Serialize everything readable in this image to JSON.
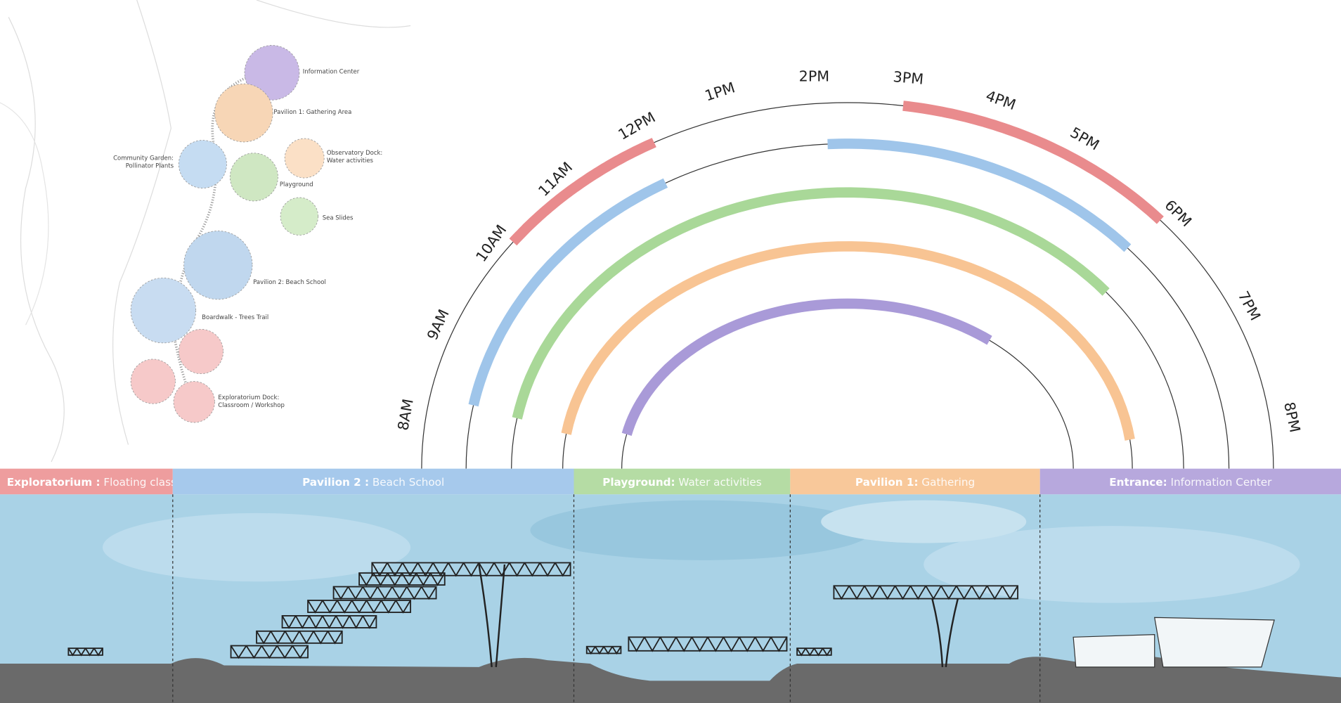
{
  "map": {
    "labels": [
      {
        "lines": [
          "Information Center"
        ]
      },
      {
        "lines": [
          "Pavilion 1: Gathering Area"
        ]
      },
      {
        "lines": [
          "Community Garden:",
          "Pollinator Plants"
        ]
      },
      {
        "lines": [
          "Observatory Dock:",
          "Water activities"
        ]
      },
      {
        "lines": [
          "Playground"
        ]
      },
      {
        "lines": [
          "Sea Slides"
        ]
      },
      {
        "lines": [
          "Pavilion 2: Beach School"
        ]
      },
      {
        "lines": [
          "Boardwalk - Trees Trail"
        ]
      },
      {
        "lines": [
          "Exploratorium Dock:",
          "Classroom / Workshop"
        ]
      }
    ]
  },
  "timeline": {
    "hours": [
      "8AM",
      "9AM",
      "10AM",
      "11AM",
      "12PM",
      "1PM",
      "2PM",
      "3PM",
      "4PM",
      "5PM",
      "6PM",
      "7PM",
      "8PM"
    ],
    "rings": [
      {
        "color": "#e98b8d",
        "spans": [
          {
            "start": 10.55,
            "end": 12.2
          },
          {
            "start": 14.5,
            "end": 17.15
          }
        ]
      },
      {
        "color": "#9fc5ea",
        "spans": [
          {
            "start": 8.75,
            "end": 12.1
          },
          {
            "start": 13.8,
            "end": 17.15
          }
        ]
      },
      {
        "color": "#a9d898",
        "spans": [
          {
            "start": 8.7,
            "end": 17.35
          }
        ]
      },
      {
        "color": "#f8c493",
        "spans": [
          {
            "start": 8.6,
            "end": 19.5
          }
        ]
      },
      {
        "color": "#a99ad8",
        "spans": [
          {
            "start": 8.8,
            "end": 16.6
          }
        ]
      }
    ]
  },
  "sections": [
    {
      "bold": "Exploratorium :",
      "light": "Floating class",
      "color": "#ee9d9e"
    },
    {
      "bold": "Pavilion 2 :",
      "light": "Beach School",
      "color": "#a6c9ec"
    },
    {
      "bold": "Playground:",
      "light": "Water activities",
      "color": "#b5dca4"
    },
    {
      "bold": "Pavilion 1:",
      "light": "Gathering",
      "color": "#f8c89a"
    },
    {
      "bold": "Entrance:",
      "light": "Information Center",
      "color": "#b7a8dd"
    }
  ]
}
